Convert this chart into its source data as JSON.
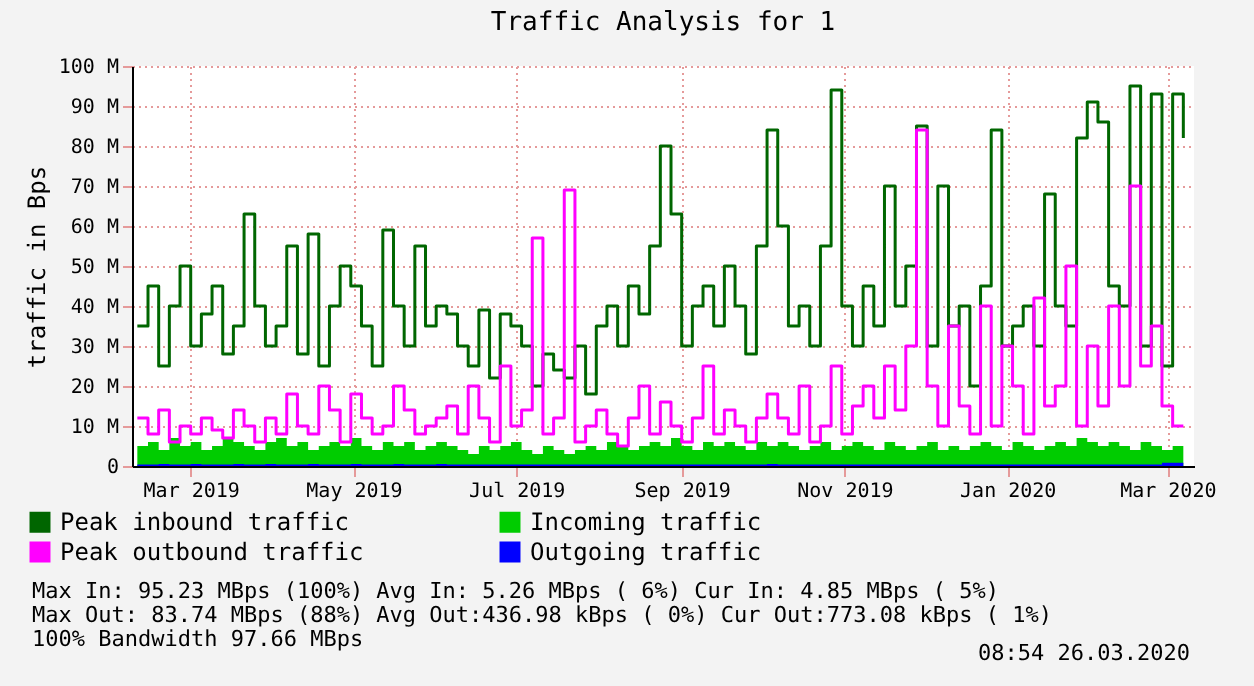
{
  "chart_data": {
    "type": "step",
    "title": "Traffic Analysis for 1",
    "ylabel": "traffic in Bps",
    "x": [
      "2019-02-24",
      "2019-02-28",
      "2019-03-04",
      "2019-03-08",
      "2019-03-12",
      "2019-03-16",
      "2019-03-20",
      "2019-03-24",
      "2019-03-28",
      "2019-04-01",
      "2019-04-05",
      "2019-04-09",
      "2019-04-13",
      "2019-04-17",
      "2019-04-21",
      "2019-04-25",
      "2019-04-29",
      "2019-05-03",
      "2019-05-07",
      "2019-05-11",
      "2019-05-15",
      "2019-05-19",
      "2019-05-23",
      "2019-05-27",
      "2019-05-31",
      "2019-06-04",
      "2019-06-08",
      "2019-06-12",
      "2019-06-16",
      "2019-06-20",
      "2019-06-24",
      "2019-06-28",
      "2019-07-02",
      "2019-07-06",
      "2019-07-10",
      "2019-07-14",
      "2019-07-18",
      "2019-07-22",
      "2019-07-26",
      "2019-07-30",
      "2019-08-03",
      "2019-08-07",
      "2019-08-11",
      "2019-08-15",
      "2019-08-19",
      "2019-08-23",
      "2019-08-27",
      "2019-08-31",
      "2019-09-04",
      "2019-09-08",
      "2019-09-12",
      "2019-09-16",
      "2019-09-20",
      "2019-09-24",
      "2019-09-28",
      "2019-10-02",
      "2019-10-06",
      "2019-10-10",
      "2019-10-14",
      "2019-10-18",
      "2019-10-22",
      "2019-10-26",
      "2019-10-30",
      "2019-11-03",
      "2019-11-07",
      "2019-11-11",
      "2019-11-15",
      "2019-11-19",
      "2019-11-23",
      "2019-11-27",
      "2019-12-01",
      "2019-12-05",
      "2019-12-09",
      "2019-12-13",
      "2019-12-17",
      "2019-12-21",
      "2019-12-25",
      "2019-12-29",
      "2020-01-02",
      "2020-01-06",
      "2020-01-10",
      "2020-01-14",
      "2020-01-18",
      "2020-01-22",
      "2020-01-26",
      "2020-01-30",
      "2020-02-03",
      "2020-02-07",
      "2020-02-11",
      "2020-02-15",
      "2020-02-19",
      "2020-02-23",
      "2020-02-27",
      "2020-03-02",
      "2020-03-06",
      "2020-03-10",
      "2020-03-14",
      "2020-03-18",
      "2020-03-22"
    ],
    "series": [
      {
        "name": "Peak inbound traffic",
        "color": "#006600",
        "values": [
          35,
          45,
          25,
          40,
          50,
          30,
          38,
          45,
          28,
          35,
          63,
          40,
          30,
          35,
          55,
          28,
          58,
          25,
          40,
          50,
          45,
          35,
          25,
          59,
          40,
          30,
          55,
          35,
          40,
          38,
          30,
          25,
          39,
          22,
          38,
          35,
          30,
          20,
          28,
          24,
          22,
          30,
          18,
          35,
          40,
          30,
          45,
          38,
          55,
          80,
          63,
          30,
          40,
          45,
          35,
          50,
          40,
          28,
          55,
          84,
          60,
          35,
          40,
          30,
          55,
          94,
          40,
          30,
          45,
          35,
          70,
          40,
          50,
          85,
          30,
          70,
          35,
          40,
          20,
          45,
          84,
          30,
          35,
          40,
          30,
          68,
          40,
          35,
          82,
          91,
          86,
          45,
          40,
          95,
          30,
          93,
          25,
          93,
          82
        ]
      },
      {
        "name": "Incoming traffic",
        "color": "#00cc00",
        "type": "area",
        "values": [
          5,
          6,
          4,
          7,
          5,
          6,
          4,
          5,
          7,
          6,
          5,
          4,
          6,
          7,
          5,
          6,
          4,
          5,
          6,
          5,
          7,
          5,
          4,
          6,
          5,
          6,
          4,
          5,
          6,
          5,
          4,
          3,
          5,
          4,
          5,
          6,
          4,
          3,
          5,
          4,
          3,
          4,
          5,
          4,
          6,
          5,
          4,
          5,
          6,
          5,
          7,
          5,
          4,
          6,
          5,
          6,
          5,
          4,
          6,
          5,
          6,
          5,
          4,
          5,
          6,
          4,
          5,
          6,
          5,
          4,
          6,
          5,
          4,
          5,
          6,
          4,
          5,
          4,
          5,
          6,
          5,
          4,
          6,
          5,
          4,
          5,
          6,
          5,
          7,
          6,
          5,
          6,
          5,
          4,
          6,
          5,
          4,
          5,
          5
        ]
      },
      {
        "name": "Peak outbound traffic",
        "color": "#ff00ff",
        "values": [
          12,
          8,
          14,
          6,
          10,
          8,
          12,
          9,
          7,
          14,
          10,
          6,
          12,
          8,
          18,
          10,
          8,
          20,
          14,
          6,
          18,
          12,
          8,
          10,
          20,
          14,
          8,
          10,
          12,
          15,
          8,
          20,
          12,
          6,
          25,
          10,
          14,
          57,
          8,
          12,
          69,
          6,
          10,
          14,
          8,
          5,
          12,
          20,
          8,
          16,
          10,
          6,
          12,
          25,
          8,
          14,
          10,
          6,
          12,
          18,
          12,
          8,
          20,
          6,
          10,
          25,
          8,
          15,
          20,
          12,
          25,
          14,
          30,
          84,
          20,
          10,
          35,
          15,
          8,
          40,
          10,
          30,
          20,
          8,
          42,
          15,
          20,
          50,
          10,
          30,
          15,
          40,
          20,
          70,
          25,
          35,
          15,
          10,
          10
        ]
      },
      {
        "name": "Outgoing traffic",
        "color": "#0000ff",
        "type": "area",
        "values": [
          0.4,
          0.4,
          0.5,
          0.4,
          0.4,
          0.5,
          0.4,
          0.4,
          0.4,
          0.5,
          0.4,
          0.4,
          0.5,
          0.4,
          0.4,
          0.4,
          0.5,
          0.4,
          0.4,
          0.4,
          0.5,
          0.4,
          0.4,
          0.4,
          0.5,
          0.4,
          0.4,
          0.4,
          0.5,
          0.4,
          0.4,
          0.4,
          0.4,
          0.4,
          0.4,
          0.4,
          0.4,
          0.4,
          0.4,
          0.4,
          0.4,
          0.4,
          0.4,
          0.4,
          0.4,
          0.4,
          0.4,
          0.4,
          0.4,
          0.4,
          0.4,
          0.4,
          0.4,
          0.4,
          0.4,
          0.4,
          0.4,
          0.4,
          0.4,
          0.5,
          0.4,
          0.4,
          0.4,
          0.4,
          0.4,
          0.4,
          0.4,
          0.4,
          0.4,
          0.4,
          0.4,
          0.4,
          0.4,
          0.4,
          0.4,
          0.4,
          0.4,
          0.4,
          0.4,
          0.4,
          0.4,
          0.4,
          0.4,
          0.4,
          0.4,
          0.4,
          0.4,
          0.4,
          0.4,
          0.4,
          0.4,
          0.4,
          0.4,
          0.4,
          0.4,
          0.4,
          0.8,
          0.8,
          0.8
        ]
      }
    ],
    "xlim": [
      "2019-02-22",
      "2020-03-26"
    ],
    "xticks": [
      {
        "value": "2019-03-16",
        "label": "Mar 2019"
      },
      {
        "value": "2019-05-16",
        "label": "May 2019"
      },
      {
        "value": "2019-07-16",
        "label": "Jul 2019"
      },
      {
        "value": "2019-09-16",
        "label": "Sep 2019"
      },
      {
        "value": "2019-11-16",
        "label": "Nov 2019"
      },
      {
        "value": "2020-01-16",
        "label": "Jan 2020"
      },
      {
        "value": "2020-03-16",
        "label": "Mar 2020"
      }
    ],
    "ylim": [
      0,
      100
    ],
    "yticks": [
      0,
      {
        "value": 10,
        "label": "10 M"
      },
      {
        "value": 20,
        "label": "20 M"
      },
      {
        "value": 30,
        "label": "30 M"
      },
      {
        "value": 40,
        "label": "40 M"
      },
      {
        "value": 50,
        "label": "50 M"
      },
      {
        "value": 60,
        "label": "60 M"
      },
      {
        "value": 70,
        "label": "70 M"
      },
      {
        "value": 80,
        "label": "80 M"
      },
      {
        "value": 90,
        "label": "90 M"
      },
      {
        "value": 100,
        "label": "100 M"
      }
    ],
    "grid": true,
    "legend": "bottom",
    "marker": "none",
    "line_style": "solid",
    "annotations": [
      "Max In:  95.23 MBps (100%)  Avg In:   5.26 MBps ( 6%)  Cur In:   4.85 MBps ( 5%)",
      "Max Out: 83.74 MBps (88%)  Avg Out:436.98 kBps ( 0%)  Cur Out:773.08 kBps ( 1%)",
      "100% Bandwidth 97.66 MBps",
      "08:54 26.03.2020"
    ]
  }
}
